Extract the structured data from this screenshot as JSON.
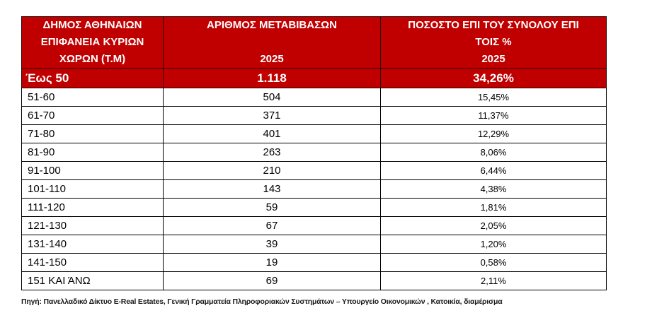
{
  "colors": {
    "header_bg": "#C00000",
    "header_text": "#FFFFFF",
    "border": "#000000",
    "body_text": "#000000"
  },
  "table": {
    "headers": [
      {
        "lines": [
          "ΔΗΜΟΣ ΑΘΗΝΑΙΩΝ",
          "ΕΠΙΦΑΝΕΙΑ ΚΥΡΙΩΝ",
          "ΧΩΡΩΝ (Τ.Μ)"
        ]
      },
      {
        "lines": [
          "ΑΡΙΘΜΟΣ ΜΕΤΑΒΙΒΑΣΩΝ",
          "",
          "2025"
        ]
      },
      {
        "lines": [
          "ΠΟΣΟΣΤΟ ΕΠΙ ΤΟΥ ΣΥΝΟΛΟΥ ΕΠΙ",
          "ΤΟΙΣ %",
          "2025"
        ]
      }
    ],
    "highlight_row": {
      "range": "Έως 50",
      "count": "1.118",
      "percent": "34,26%"
    },
    "rows": [
      {
        "range": "51-60",
        "count": "504",
        "percent": "15,45%"
      },
      {
        "range": "61-70",
        "count": "371",
        "percent": "11,37%"
      },
      {
        "range": "71-80",
        "count": "401",
        "percent": "12,29%"
      },
      {
        "range": "81-90",
        "count": "263",
        "percent": "8,06%"
      },
      {
        "range": "91-100",
        "count": "210",
        "percent": "6,44%"
      },
      {
        "range": "101-110",
        "count": "143",
        "percent": "4,38%"
      },
      {
        "range": "111-120",
        "count": "59",
        "percent": "1,81%"
      },
      {
        "range": "121-130",
        "count": "67",
        "percent": "2,05%"
      },
      {
        "range": "131-140",
        "count": "39",
        "percent": "1,20%"
      },
      {
        "range": "141-150",
        "count": "19",
        "percent": "0,58%"
      },
      {
        "range": "151 ΚΑΙ ΆΝΩ",
        "count": "69",
        "percent": "2,11%"
      }
    ]
  },
  "footer": {
    "source": "Πηγή: Πανελλαδικό Δίκτυο E-Real Estates, Γενική Γραμματεία Πληροφοριακών Συστημάτων – Υπουργείο Οικονομικών , Κατοικία, διαμέρισμα"
  },
  "chart_data": {
    "type": "table",
    "title": "ΔΗΜΟΣ ΑΘΗΝΑΙΩΝ ΕΠΙΦΑΝΕΙΑ ΚΥΡΙΩΝ ΧΩΡΩΝ (Τ.Μ)",
    "columns": [
      "ΔΗΜΟΣ ΑΘΗΝΑΙΩΝ ΕΠΙΦΑΝΕΙΑ ΚΥΡΙΩΝ ΧΩΡΩΝ (Τ.Μ)",
      "ΑΡΙΘΜΟΣ ΜΕΤΑΒΙΒΑΣΩΝ 2025",
      "ΠΟΣΟΣΤΟ ΕΠΙ ΤΟΥ ΣΥΝΟΛΟΥ ΕΠΙ ΤΟΙΣ % 2025"
    ],
    "categories": [
      "Έως 50",
      "51-60",
      "61-70",
      "71-80",
      "81-90",
      "91-100",
      "101-110",
      "111-120",
      "121-130",
      "131-140",
      "141-150",
      "151 ΚΑΙ ΆΝΩ"
    ],
    "series": [
      {
        "name": "ΑΡΙΘΜΟΣ ΜΕΤΑΒΙΒΑΣΩΝ 2025",
        "values": [
          1118,
          504,
          371,
          401,
          263,
          210,
          143,
          59,
          67,
          39,
          19,
          69
        ]
      },
      {
        "name": "ΠΟΣΟΣΤΟ ΕΠΙ ΤΟΥ ΣΥΝΟΛΟΥ ΕΠΙ ΤΟΙΣ % 2025",
        "values": [
          34.26,
          15.45,
          11.37,
          12.29,
          8.06,
          6.44,
          4.38,
          1.81,
          2.05,
          1.2,
          0.58,
          2.11
        ]
      }
    ],
    "source": "Πηγή: Πανελλαδικό Δίκτυο E-Real Estates, Γενική Γραμματεία Πληροφοριακών Συστημάτων – Υπουργείο Οικονομικών , Κατοικία, διαμέρισμα"
  }
}
